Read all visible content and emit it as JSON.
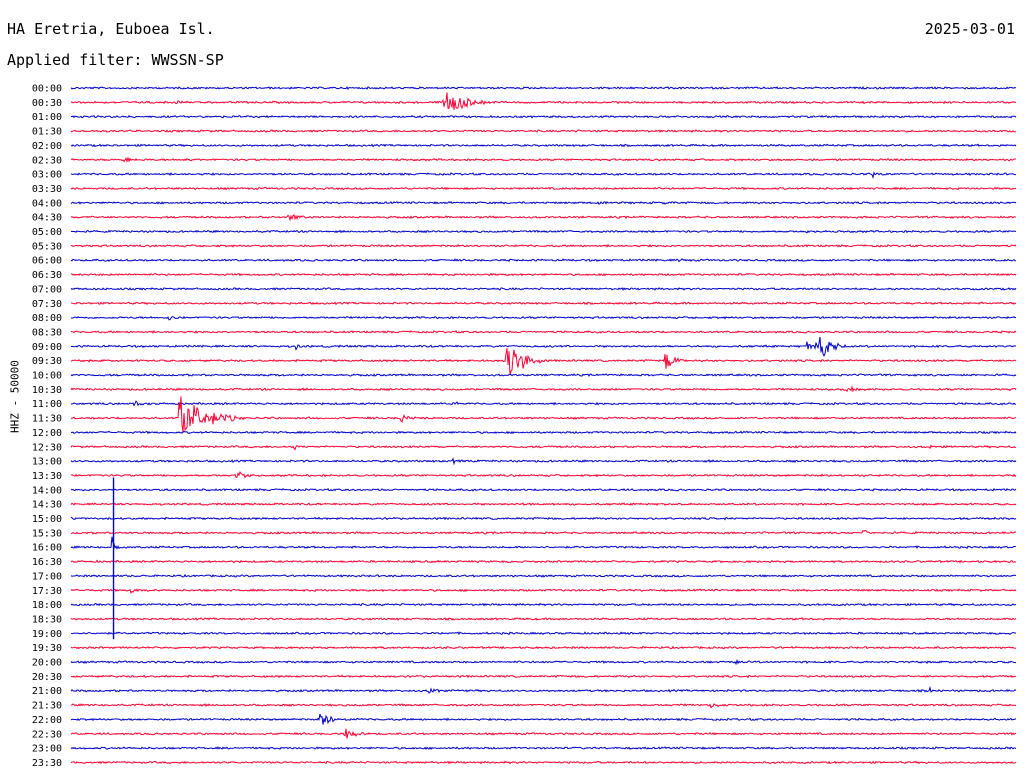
{
  "header": {
    "station": "HA Eretria, Euboea Isl.",
    "date": "2025-03-01",
    "filter": "Applied filter: WWSSN-SP"
  },
  "colors": {
    "blue": "#0000cc",
    "red": "#ff0033"
  },
  "chart_data": {
    "type": "line",
    "title": "HA Eretria, Euboea Isl.",
    "ylabel": "HHZ - 50000",
    "series_colors_alternate": [
      "blue",
      "red"
    ],
    "time_labels": [
      "00:00",
      "00:30",
      "01:00",
      "01:30",
      "02:00",
      "02:30",
      "03:00",
      "03:30",
      "04:00",
      "04:30",
      "05:00",
      "05:30",
      "06:00",
      "06:30",
      "07:00",
      "07:30",
      "08:00",
      "08:30",
      "09:00",
      "09:30",
      "10:00",
      "10:30",
      "11:00",
      "11:30",
      "12:00",
      "12:30",
      "13:00",
      "13:30",
      "14:00",
      "14:30",
      "15:00",
      "15:30",
      "16:00",
      "16:30",
      "17:00",
      "17:30",
      "18:00",
      "18:30",
      "19:00",
      "19:30",
      "20:00",
      "20:30",
      "21:00",
      "21:30",
      "22:00",
      "22:30",
      "23:00",
      "23:30"
    ],
    "events": [
      {
        "row": 1,
        "pos": 0.11,
        "amp": 3,
        "dur": 0.03
      },
      {
        "row": 1,
        "pos": 0.395,
        "amp": 16,
        "dur": 0.06
      },
      {
        "row": 5,
        "pos": 0.055,
        "amp": 4,
        "dur": 0.03
      },
      {
        "row": 5,
        "pos": 0.12,
        "amp": 4,
        "dur": 0.02
      },
      {
        "row": 6,
        "pos": 0.85,
        "amp": 3,
        "dur": 0.02
      },
      {
        "row": 8,
        "pos": 0.56,
        "amp": 2,
        "dur": 0.03
      },
      {
        "row": 8,
        "pos": 0.63,
        "amp": 2,
        "dur": 0.01
      },
      {
        "row": 9,
        "pos": 0.23,
        "amp": 5,
        "dur": 0.04
      },
      {
        "row": 10,
        "pos": 0.78,
        "amp": 2,
        "dur": 0.03
      },
      {
        "row": 12,
        "pos": 0.645,
        "amp": 3,
        "dur": 0.01
      },
      {
        "row": 16,
        "pos": 0.105,
        "amp": 4,
        "dur": 0.01
      },
      {
        "row": 18,
        "pos": 0.24,
        "amp": 4,
        "dur": 0.01
      },
      {
        "row": 18,
        "pos": 0.78,
        "amp": 6,
        "dur": 0.03
      },
      {
        "row": 18,
        "pos": 0.79,
        "amp": 24,
        "dur": 0.03
      },
      {
        "row": 19,
        "pos": 0.462,
        "amp": 30,
        "dur": 0.04
      },
      {
        "row": 19,
        "pos": 0.63,
        "amp": 11,
        "dur": 0.03
      },
      {
        "row": 21,
        "pos": 0.82,
        "amp": 5,
        "dur": 0.03
      },
      {
        "row": 22,
        "pos": 0.068,
        "amp": 4,
        "dur": 0.02
      },
      {
        "row": 22,
        "pos": 0.41,
        "amp": 2,
        "dur": 0.01
      },
      {
        "row": 23,
        "pos": 0.115,
        "amp": 30,
        "dur": 0.07
      },
      {
        "row": 23,
        "pos": 0.35,
        "amp": 6,
        "dur": 0.02
      },
      {
        "row": 25,
        "pos": 0.235,
        "amp": 8,
        "dur": 0.01
      },
      {
        "row": 25,
        "pos": 0.91,
        "amp": 3,
        "dur": 0.01
      },
      {
        "row": 26,
        "pos": 0.405,
        "amp": 4,
        "dur": 0.02
      },
      {
        "row": 27,
        "pos": 0.175,
        "amp": 5,
        "dur": 0.04
      },
      {
        "row": 29,
        "pos": 0.48,
        "amp": 2,
        "dur": 0.04
      },
      {
        "row": 30,
        "pos": 0.0,
        "amp": 2,
        "dur": 0.04
      },
      {
        "row": 31,
        "pos": 0.84,
        "amp": 4,
        "dur": 0.01
      },
      {
        "row": 32,
        "pos": 0.045,
        "amp": 8,
        "dur": 0.01
      },
      {
        "row": 35,
        "pos": 0.065,
        "amp": 4,
        "dur": 0.03
      },
      {
        "row": 40,
        "pos": 0.705,
        "amp": 4,
        "dur": 0.02
      },
      {
        "row": 42,
        "pos": 0.38,
        "amp": 4,
        "dur": 0.04
      },
      {
        "row": 42,
        "pos": 0.91,
        "amp": 3,
        "dur": 0.01
      },
      {
        "row": 43,
        "pos": 0.675,
        "amp": 4,
        "dur": 0.04
      },
      {
        "row": 44,
        "pos": 0.265,
        "amp": 9,
        "dur": 0.04
      },
      {
        "row": 45,
        "pos": 0.29,
        "amp": 6,
        "dur": 0.04
      }
    ],
    "spike": {
      "row": 32,
      "pos": 0.045,
      "top_row": 27,
      "bottom_row": 38
    }
  }
}
